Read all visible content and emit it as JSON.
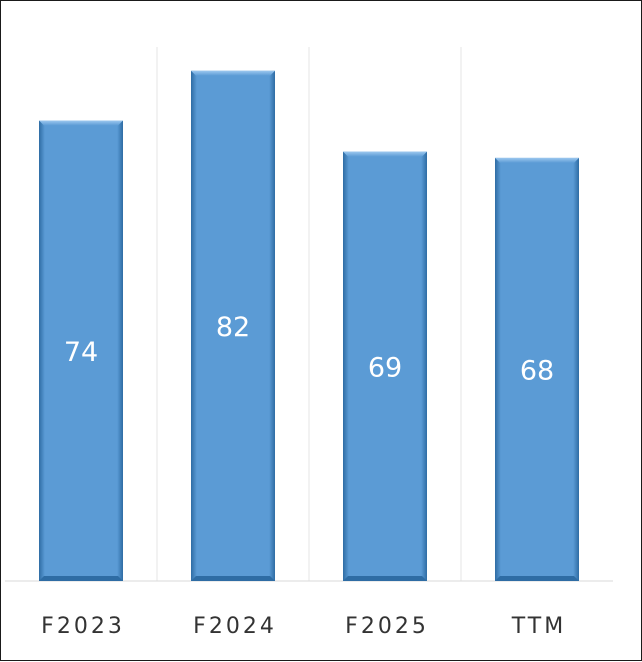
{
  "chart_data": {
    "type": "bar",
    "title": "",
    "xlabel": "",
    "ylabel": "",
    "categories": [
      "F2023",
      "F2024",
      "F2025",
      "TTM"
    ],
    "values": [
      74,
      82,
      69,
      68
    ],
    "data_labels": [
      "74",
      "82",
      "69",
      "68"
    ],
    "ylim": [
      0,
      90
    ],
    "grid": "vertical category separators only",
    "legend": "none",
    "colors": {
      "bar_fill": "#5b9bd5",
      "bar_edge_light": "#9cc8ef",
      "bar_edge_dark": "#2e6ca4",
      "data_label": "#ffffff",
      "tick_label": "#333333",
      "gridline": "#e6e6e6",
      "axis": "#d9d9d9",
      "frame": "#1a1a1a"
    }
  }
}
